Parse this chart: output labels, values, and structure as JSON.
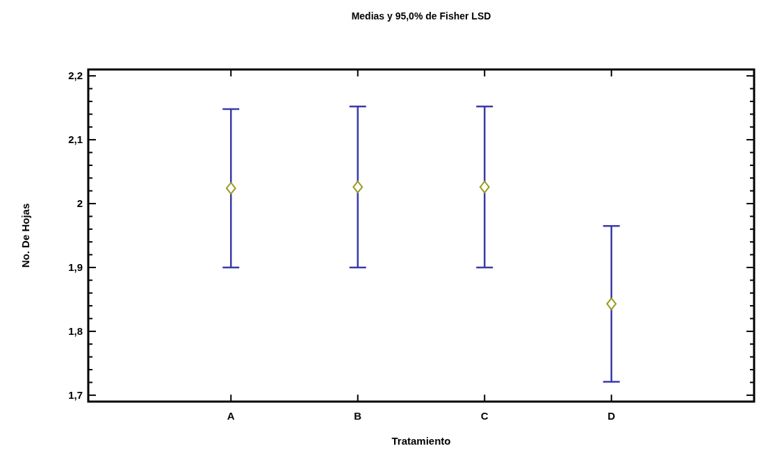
{
  "chart_data": {
    "type": "scatter",
    "title": "Medias y 95,0% de Fisher LSD",
    "xlabel": "Tratamiento",
    "ylabel": "No. De Hojas",
    "categories": [
      "A",
      "B",
      "C",
      "D"
    ],
    "series": [
      {
        "color": "#9a9a22",
        "values": [
          2.024,
          2.026,
          2.026,
          1.843
        ],
        "errors": [
          0.124,
          0.126,
          0.126,
          0.122
        ]
      }
    ],
    "marker": "diamond",
    "ylim": [
      1.69,
      2.21
    ],
    "yticks": [
      {
        "value": 1.7,
        "label": "1,7"
      },
      {
        "value": 1.72,
        "label": null
      },
      {
        "value": 1.74,
        "label": null
      },
      {
        "value": 1.76,
        "label": null
      },
      {
        "value": 1.78,
        "label": null
      },
      {
        "value": 1.8,
        "label": "1,8"
      },
      {
        "value": 1.82,
        "label": null
      },
      {
        "value": 1.84,
        "label": null
      },
      {
        "value": 1.86,
        "label": null
      },
      {
        "value": 1.88,
        "label": null
      },
      {
        "value": 1.9,
        "label": "1,9"
      },
      {
        "value": 1.92,
        "label": null
      },
      {
        "value": 1.94,
        "label": null
      },
      {
        "value": 1.96,
        "label": null
      },
      {
        "value": 1.98,
        "label": null
      },
      2,
      {
        "value": 2.02,
        "label": null
      },
      {
        "value": 2.04,
        "label": null
      },
      {
        "value": 2.06,
        "label": null
      },
      {
        "value": 2.08,
        "label": null
      },
      {
        "value": 2.1,
        "label": "2,1"
      },
      {
        "value": 2.12,
        "label": null
      },
      {
        "value": 2.14,
        "label": null
      },
      {
        "value": 2.16,
        "label": null
      },
      {
        "value": 2.18,
        "label": null
      },
      {
        "value": 2.2,
        "label": "2,2"
      }
    ]
  }
}
